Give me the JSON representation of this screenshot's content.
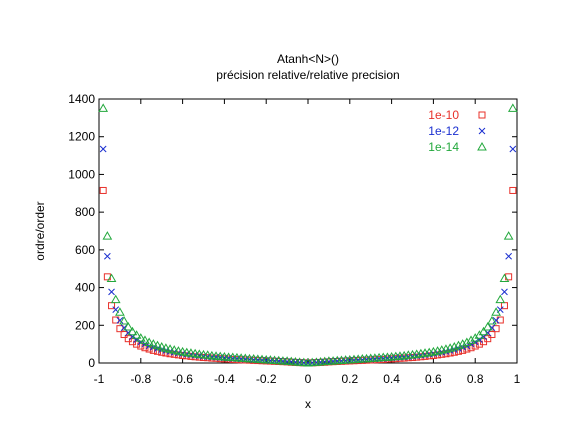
{
  "chart_data": {
    "type": "scatter",
    "title": "Atanh<N>()",
    "subtitle": "précision relative/relative precision",
    "xlabel": "x",
    "ylabel": "ordre/order",
    "xlim": [
      -1,
      1
    ],
    "ylim": [
      0,
      1400
    ],
    "xticks": [
      -1,
      -0.8,
      -0.6,
      -0.4,
      -0.2,
      0,
      0.2,
      0.4,
      0.6,
      0.8,
      1
    ],
    "xtick_labels": [
      "-1",
      "-0.8",
      "-0.6",
      "-0.4",
      "-0.2",
      "0",
      "0.2",
      "0.4",
      "0.6",
      "0.8",
      "1"
    ],
    "yticks": [
      0,
      200,
      400,
      600,
      800,
      1000,
      1200,
      1400
    ],
    "ytick_labels": [
      "0",
      "200",
      "400",
      "600",
      "800",
      "1000",
      "1200",
      "1400"
    ],
    "grid": false,
    "legend_position": "top-right",
    "x": [
      -0.98,
      -0.96,
      -0.94,
      -0.92,
      -0.9,
      -0.88,
      -0.86,
      -0.84,
      -0.82,
      -0.8,
      -0.78,
      -0.76,
      -0.74,
      -0.72,
      -0.7,
      -0.68,
      -0.66,
      -0.64,
      -0.62,
      -0.6,
      -0.58,
      -0.56,
      -0.54,
      -0.52,
      -0.5,
      -0.48,
      -0.46,
      -0.44,
      -0.42,
      -0.4,
      -0.38,
      -0.36,
      -0.34,
      -0.32,
      -0.3,
      -0.28,
      -0.26,
      -0.24,
      -0.22,
      -0.2,
      -0.18,
      -0.16,
      -0.14,
      -0.12,
      -0.1,
      -0.08,
      -0.06,
      -0.04,
      -0.02,
      0,
      0.02,
      0.04,
      0.06,
      0.08,
      0.1,
      0.12,
      0.14,
      0.16,
      0.18,
      0.2,
      0.22,
      0.24,
      0.26,
      0.28,
      0.3,
      0.32,
      0.34,
      0.36,
      0.38,
      0.4,
      0.42,
      0.44,
      0.46,
      0.48,
      0.5,
      0.52,
      0.54,
      0.56,
      0.58,
      0.6,
      0.62,
      0.64,
      0.66,
      0.68,
      0.7,
      0.72,
      0.74,
      0.76,
      0.78,
      0.8,
      0.82,
      0.84,
      0.86,
      0.88,
      0.9,
      0.92,
      0.94,
      0.96,
      0.98
    ],
    "series": [
      {
        "name": "1e-10",
        "color": "#e8302a",
        "marker": "square",
        "values": [
          915,
          457,
          304,
          228,
          182,
          151,
          129,
          113,
          100,
          90,
          81,
          74,
          67,
          62,
          57,
          53,
          49,
          46,
          43,
          40,
          38,
          35,
          33,
          31,
          29,
          28,
          26,
          25,
          23,
          22,
          21,
          19,
          18,
          17,
          16,
          15,
          14,
          13,
          12,
          11,
          10,
          9,
          8,
          7,
          6,
          4,
          3,
          2,
          1,
          0,
          1,
          2,
          3,
          4,
          6,
          7,
          8,
          9,
          10,
          11,
          12,
          13,
          14,
          15,
          16,
          17,
          18,
          19,
          21,
          22,
          23,
          25,
          26,
          28,
          29,
          31,
          33,
          35,
          38,
          40,
          43,
          46,
          49,
          53,
          57,
          62,
          67,
          74,
          81,
          90,
          100,
          113,
          129,
          151,
          182,
          228,
          304,
          457,
          915
        ]
      },
      {
        "name": "1e-12",
        "color": "#1a2fd0",
        "marker": "x",
        "values": [
          1135,
          566,
          377,
          283,
          226,
          187,
          160,
          140,
          124,
          111,
          101,
          91,
          84,
          77,
          71,
          66,
          61,
          57,
          53,
          50,
          47,
          44,
          41,
          39,
          36,
          34,
          32,
          31,
          29,
          27,
          26,
          24,
          23,
          21,
          20,
          19,
          17,
          16,
          15,
          14,
          12,
          11,
          10,
          9,
          7,
          6,
          4,
          3,
          1,
          0,
          1,
          3,
          4,
          6,
          7,
          9,
          10,
          11,
          12,
          14,
          15,
          16,
          17,
          19,
          20,
          21,
          23,
          24,
          26,
          27,
          29,
          31,
          32,
          34,
          36,
          39,
          41,
          44,
          47,
          50,
          53,
          57,
          61,
          66,
          71,
          77,
          84,
          91,
          101,
          111,
          124,
          140,
          160,
          187,
          226,
          283,
          377,
          566,
          1135
        ]
      },
      {
        "name": "1e-14",
        "color": "#22a83c",
        "marker": "triangle",
        "values": [
          1350,
          673,
          448,
          336,
          269,
          223,
          191,
          166,
          147,
          132,
          120,
          109,
          100,
          92,
          85,
          78,
          73,
          68,
          63,
          59,
          55,
          52,
          49,
          46,
          43,
          41,
          38,
          36,
          34,
          32,
          30,
          29,
          27,
          25,
          24,
          22,
          21,
          19,
          18,
          16,
          15,
          13,
          12,
          10,
          9,
          7,
          5,
          3,
          2,
          0,
          2,
          3,
          5,
          7,
          9,
          10,
          12,
          13,
          15,
          16,
          18,
          19,
          21,
          22,
          24,
          25,
          27,
          29,
          30,
          32,
          34,
          36,
          38,
          41,
          43,
          46,
          49,
          52,
          55,
          59,
          63,
          68,
          73,
          78,
          85,
          92,
          100,
          109,
          120,
          132,
          147,
          166,
          191,
          223,
          269,
          336,
          448,
          673,
          1350
        ]
      }
    ]
  }
}
